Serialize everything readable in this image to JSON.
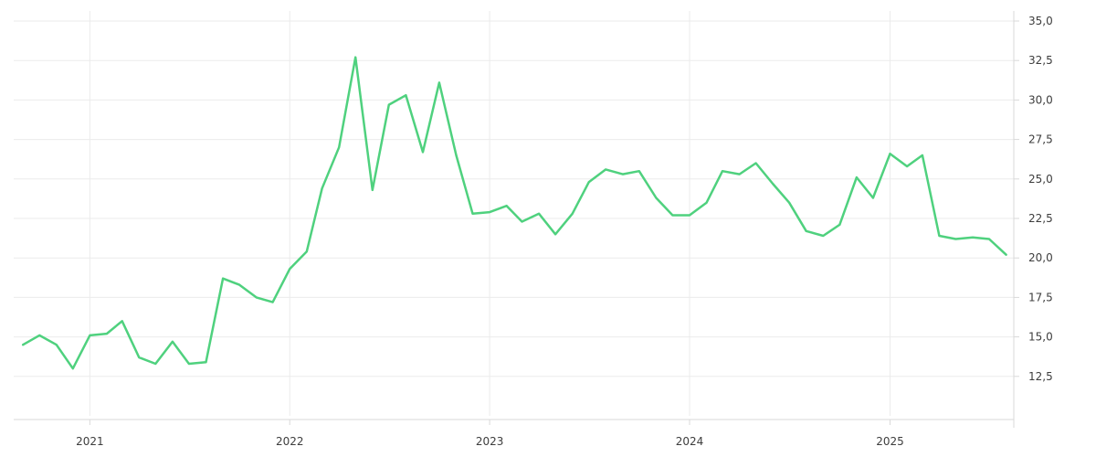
{
  "chart_data": {
    "type": "line",
    "grid": true,
    "y_axis_position": "right",
    "ylim": [
      10.0,
      35.0
    ],
    "y_ticks": [
      12.5,
      15.0,
      17.5,
      20.0,
      22.5,
      25.0,
      27.5,
      30.0,
      32.5,
      35.0
    ],
    "y_tick_labels": [
      "12,5",
      "15,0",
      "17,5",
      "20,0",
      "22,5",
      "25,0",
      "27,5",
      "30,0",
      "32,5",
      "35,0"
    ],
    "xlim": [
      "2020-08-15",
      "2025-08-15"
    ],
    "x_ticks": [
      "2021-01-01",
      "2022-01-01",
      "2023-01-01",
      "2024-01-01",
      "2025-01-01"
    ],
    "x_tick_labels": [
      "2021",
      "2022",
      "2023",
      "2024",
      "2025"
    ],
    "colors": {
      "line": "#4fd17e"
    },
    "series": [
      {
        "x": [
          "2020-09-01",
          "2020-10-01",
          "2020-11-01",
          "2020-12-01",
          "2021-01-01",
          "2021-02-01",
          "2021-03-01",
          "2021-04-01",
          "2021-05-01",
          "2021-06-01",
          "2021-07-01",
          "2021-08-01",
          "2021-09-01",
          "2021-10-01",
          "2021-11-01",
          "2021-12-01",
          "2022-01-01",
          "2022-02-01",
          "2022-03-01",
          "2022-04-01",
          "2022-05-01",
          "2022-06-01",
          "2022-07-01",
          "2022-08-01",
          "2022-09-01",
          "2022-10-01",
          "2022-11-01",
          "2022-12-01",
          "2023-01-01",
          "2023-02-01",
          "2023-03-01",
          "2023-04-01",
          "2023-05-01",
          "2023-06-01",
          "2023-07-01",
          "2023-08-01",
          "2023-09-01",
          "2023-10-01",
          "2023-11-01",
          "2023-12-01",
          "2024-01-01",
          "2024-02-01",
          "2024-03-01",
          "2024-04-01",
          "2024-05-01",
          "2024-06-01",
          "2024-07-01",
          "2024-08-01",
          "2024-09-01",
          "2024-10-01",
          "2024-11-01",
          "2024-12-01",
          "2025-01-01",
          "2025-02-01",
          "2025-03-01",
          "2025-04-01",
          "2025-05-01",
          "2025-06-01",
          "2025-07-01",
          "2025-08-01"
        ],
        "y": [
          14.5,
          15.1,
          14.5,
          13.0,
          15.1,
          15.2,
          16.0,
          13.7,
          13.3,
          14.7,
          13.3,
          13.4,
          18.7,
          18.3,
          17.5,
          17.2,
          19.3,
          20.4,
          24.4,
          27.0,
          32.7,
          24.3,
          29.7,
          30.3,
          26.7,
          31.1,
          26.5,
          22.8,
          22.9,
          23.3,
          22.3,
          22.8,
          21.5,
          22.8,
          24.8,
          25.6,
          25.3,
          25.5,
          23.8,
          22.7,
          22.7,
          23.5,
          25.5,
          25.3,
          26.0,
          24.7,
          23.5,
          21.7,
          21.4,
          22.1,
          25.1,
          23.8,
          26.6,
          25.8,
          26.5,
          21.4,
          21.2,
          21.3,
          21.2,
          20.2
        ]
      }
    ]
  }
}
